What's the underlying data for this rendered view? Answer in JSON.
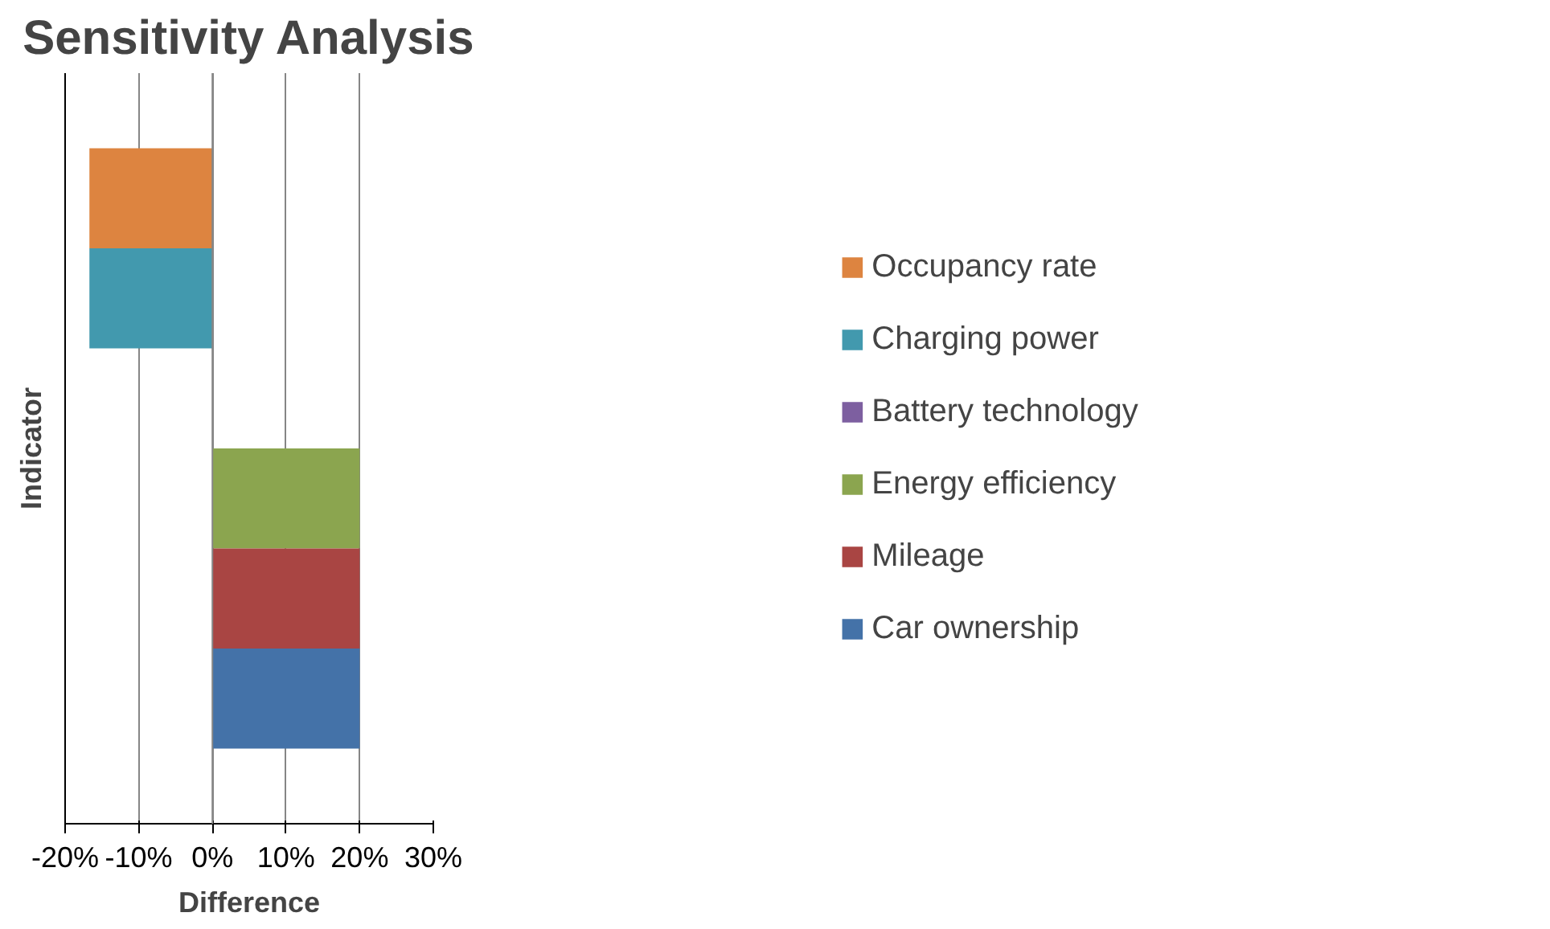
{
  "chart_data": {
    "type": "bar",
    "orientation": "horizontal",
    "title": "Sensitivity Analysis",
    "xlabel": "Difference",
    "ylabel": "Indicator",
    "categories": [
      null
    ],
    "series": [
      {
        "name": "Occupancy rate",
        "color": "#dd8440",
        "values": [
          -16.7
        ]
      },
      {
        "name": "Charging power",
        "color": "#4299ae",
        "values": [
          -16.7
        ]
      },
      {
        "name": "Battery technology",
        "color": "#7d5fa0",
        "values": [
          0
        ]
      },
      {
        "name": "Energy efficiency",
        "color": "#8ba54f",
        "values": [
          20
        ]
      },
      {
        "name": "Mileage",
        "color": "#a94543",
        "values": [
          20
        ]
      },
      {
        "name": "Car ownership",
        "color": "#4472a8",
        "values": [
          20
        ]
      }
    ],
    "xlim": [
      -20,
      30
    ],
    "xticks": [
      {
        "value": -20,
        "label": "-20%"
      },
      {
        "value": -10,
        "label": "-10%"
      },
      {
        "value": 0,
        "label": "0%"
      },
      {
        "value": 10,
        "label": "10%"
      },
      {
        "value": 20,
        "label": "20%"
      },
      {
        "value": 30,
        "label": "30%"
      }
    ],
    "grid": "x",
    "legend": "right",
    "tick_labels": "x"
  }
}
